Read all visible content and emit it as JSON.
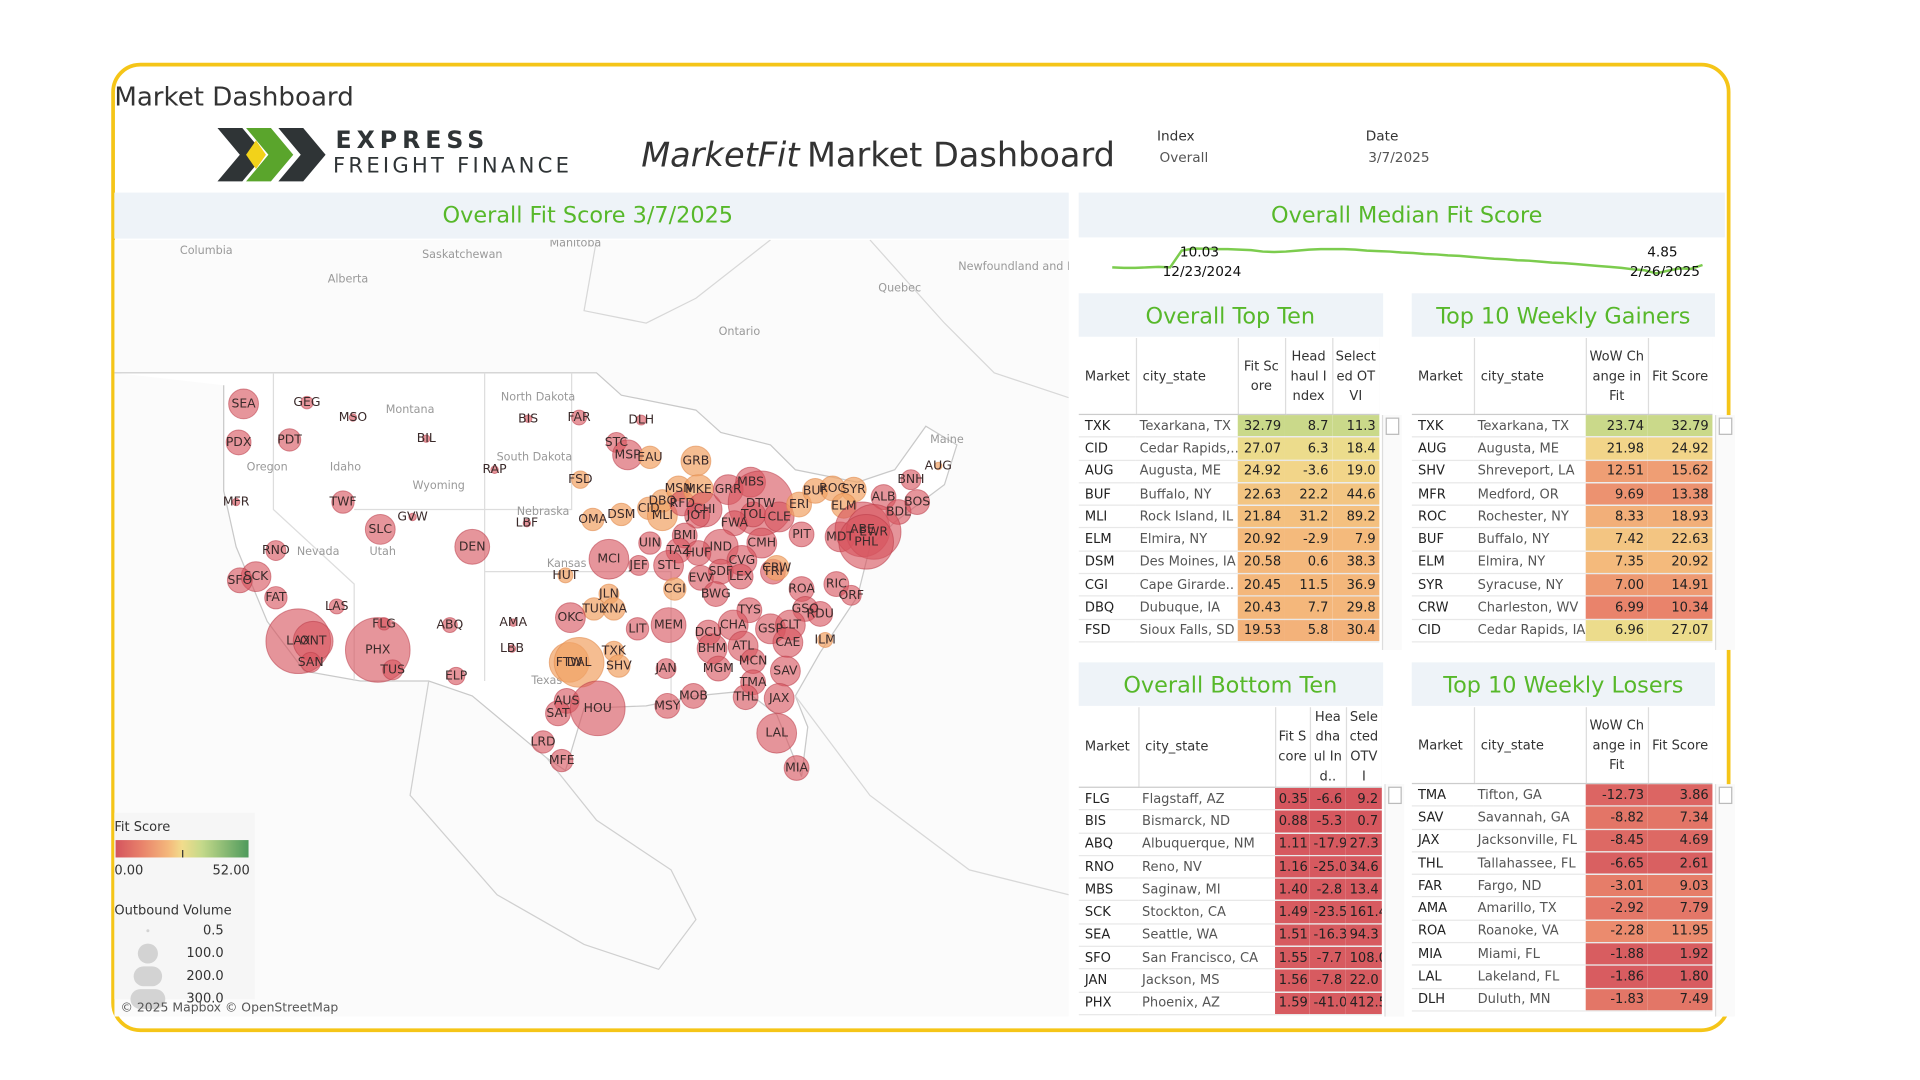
{
  "header": {
    "page_title": "Market Dashboard",
    "logo_top": "EXPRESS",
    "logo_bottom": "FREIGHT FINANCE",
    "title_brand": "MarketFit",
    "title_rest": "Market Dashboard",
    "filters": [
      {
        "label": "Index",
        "value": "Overall"
      },
      {
        "label": "Date",
        "value": "3/7/2025"
      }
    ]
  },
  "map": {
    "title": "Overall Fit Score 3/7/2025",
    "places": [
      "Columbia",
      "Saskatchewan",
      "Alberta",
      "Manitoba",
      "Quebec",
      "Ontario",
      "Newfoundland and Labrador",
      "Montana",
      "North Dakota",
      "South Dakota",
      "Wyoming",
      "Oregon",
      "Idaho",
      "Nevada",
      "Utah",
      "Nebraska",
      "Kansas",
      "Texas",
      "Maine"
    ],
    "markets": [
      "SEA",
      "GEG",
      "MSO",
      "PDX",
      "PDT",
      "BIL",
      "MFR",
      "TWF",
      "GVW",
      "SLC",
      "RNO",
      "DEN",
      "SCK",
      "SFO",
      "FAT",
      "LAS",
      "LAX",
      "ONT",
      "SAN",
      "PHX",
      "FLG",
      "TUS",
      "ABQ",
      "ELP",
      "AMA",
      "LBB",
      "BIS",
      "FAR",
      "DLH",
      "STC",
      "MSP",
      "EAU",
      "RAP",
      "FSD",
      "GRB",
      "OMA",
      "LBF",
      "DSM",
      "CID",
      "MLI",
      "DBQ",
      "MSN",
      "RFD",
      "MKE",
      "CHI",
      "JOT",
      "GRR",
      "MBS",
      "DTW",
      "TOL",
      "CLE",
      "FWA",
      "ERI",
      "BUF",
      "ROC",
      "SYR",
      "ELM",
      "ALB",
      "BNH",
      "AUG",
      "BOS",
      "BDL",
      "MDT",
      "ABE",
      "EWR",
      "PHL",
      "PIT",
      "CMH",
      "IND",
      "UIN",
      "BMI",
      "TAZ",
      "HUF",
      "MCI",
      "STL",
      "JEF",
      "CVG",
      "SDF",
      "LEX",
      "EVV",
      "TRI",
      "CRW",
      "HUT",
      "CGI",
      "ROA",
      "RIC",
      "ORF",
      "BWG",
      "TYS",
      "JLN",
      "TUL",
      "XNA",
      "OKC",
      "GSO",
      "RDU",
      "MEM",
      "LIT",
      "CHA",
      "DCU",
      "GSP",
      "CLT",
      "CAE",
      "ILM",
      "BHM",
      "ATL",
      "TXK",
      "SHV",
      "FTW",
      "DAL",
      "JAN",
      "MGM",
      "MCN",
      "SAV",
      "TMA",
      "THL",
      "JAX",
      "MOB",
      "MSY",
      "AUS",
      "SAT",
      "HOU",
      "LAL",
      "MIA",
      "LRD",
      "MFE"
    ],
    "attribution": "© 2025 Mapbox © OpenStreetMap",
    "color_legend": {
      "title": "Fit Score",
      "min": {
        "value": 0,
        "label": "0.00"
      },
      "max": {
        "value": 52,
        "label": "52.00"
      }
    },
    "size_legend": {
      "title": "Outbound Volume",
      "items": [
        0.5,
        {
          "value": 100,
          "label": "100.0"
        },
        {
          "value": 200,
          "label": "200.0"
        },
        {
          "value": 300,
          "label": "300.0"
        }
      ]
    }
  },
  "median": {
    "title": "Overall Median Fit Score",
    "values": [
      6.1,
      6.0,
      6.0,
      6.1,
      6.2,
      6.1,
      9.6,
      10.03,
      10.0,
      9.9,
      9.9,
      9.8,
      9.7,
      9.4,
      9.3,
      9.4,
      9.6,
      9.8,
      9.9,
      9.9,
      9.9,
      9.8,
      9.6,
      9.5,
      9.4,
      9.2,
      9.1,
      8.9,
      8.8,
      8.6,
      8.5,
      8.3,
      8.1,
      7.9,
      7.8,
      7.6,
      7.5,
      7.3,
      7.1,
      7.0,
      6.8,
      6.6,
      6.4,
      6.2,
      6.0,
      5.7,
      5.5,
      4.85,
      5.4,
      5.9,
      5.8,
      6.6
    ],
    "annotations": [
      {
        "value": 10.03,
        "label": "12/23/2024"
      },
      {
        "value": 4.85,
        "label": "2/26/2025"
      }
    ]
  },
  "tables": [
    {
      "title": "Overall Top Ten",
      "columns": [
        "Market",
        "city_state",
        "Fit Score",
        "Headhaul Index",
        "Selected OTVI"
      ],
      "rows": [
        [
          "TXK",
          "Texarkana, TX",
          "32.79",
          "8.7",
          "11.3"
        ],
        [
          "CID",
          "Cedar Rapids,..",
          "27.07",
          "6.3",
          "18.4"
        ],
        [
          "AUG",
          "Augusta, ME",
          "24.92",
          "-3.6",
          "19.0"
        ],
        [
          "BUF",
          "Buffalo, NY",
          "22.63",
          "22.2",
          "44.6"
        ],
        [
          "MLI",
          "Rock Island, IL",
          "21.84",
          "31.2",
          "89.2"
        ],
        [
          "ELM",
          "Elmira, NY",
          "20.92",
          "-2.9",
          "7.9"
        ],
        [
          "DSM",
          "Des Moines, IA",
          "20.58",
          "0.6",
          "38.3"
        ],
        [
          "CGI",
          "Cape Girarde..",
          "20.45",
          "11.5",
          "36.9"
        ],
        [
          "DBQ",
          "Dubuque, IA",
          "20.43",
          "7.7",
          "29.8"
        ],
        [
          "FSD",
          "Sioux Falls, SD",
          "19.53",
          "5.8",
          "30.4"
        ]
      ]
    },
    {
      "title": "Top 10 Weekly Gainers",
      "columns": [
        "Market",
        "city_state",
        "WoW Change in Fit",
        "Fit Score"
      ],
      "rows": [
        [
          "TXK",
          "Texarkana, TX",
          "23.74",
          "32.79"
        ],
        [
          "AUG",
          "Augusta, ME",
          "21.98",
          "24.92"
        ],
        [
          "SHV",
          "Shreveport, LA",
          "12.51",
          "15.62"
        ],
        [
          "MFR",
          "Medford, OR",
          "9.69",
          "13.38"
        ],
        [
          "ROC",
          "Rochester, NY",
          "8.33",
          "18.93"
        ],
        [
          "BUF",
          "Buffalo, NY",
          "7.42",
          "22.63"
        ],
        [
          "ELM",
          "Elmira, NY",
          "7.35",
          "20.92"
        ],
        [
          "SYR",
          "Syracuse, NY",
          "7.00",
          "14.91"
        ],
        [
          "CRW",
          "Charleston, WV",
          "6.99",
          "10.34"
        ],
        [
          "CID",
          "Cedar Rapids, IA",
          "6.96",
          "27.07"
        ]
      ]
    },
    {
      "title": "Overall Bottom Ten",
      "columns": [
        "Market",
        "city_state",
        "Fit Score",
        "Headhaul Ind..",
        "Selected OTVI"
      ],
      "rows": [
        [
          "FLG",
          "Flagstaff, AZ",
          "0.35",
          "-6.6",
          "9.2"
        ],
        [
          "BIS",
          "Bismarck, ND",
          "0.88",
          "-5.3",
          "0.7"
        ],
        [
          "ABQ",
          "Albuquerque, NM",
          "1.11",
          "-17.9",
          "27.3"
        ],
        [
          "RNO",
          "Reno, NV",
          "1.16",
          "-25.0",
          "34.6"
        ],
        [
          "MBS",
          "Saginaw, MI",
          "1.40",
          "-2.8",
          "13.4"
        ],
        [
          "SCK",
          "Stockton, CA",
          "1.49",
          "-23.5",
          "161.4"
        ],
        [
          "SEA",
          "Seattle, WA",
          "1.51",
          "-16.3",
          "94.3"
        ],
        [
          "SFO",
          "San Francisco, CA",
          "1.55",
          "-7.7",
          "108.0"
        ],
        [
          "JAN",
          "Jackson, MS",
          "1.56",
          "-7.8",
          "22.0"
        ],
        [
          "PHX",
          "Phoenix, AZ",
          "1.59",
          "-41.0",
          "412.5"
        ]
      ]
    },
    {
      "title": "Top 10 Weekly Losers",
      "columns": [
        "Market",
        "city_state",
        "WoW Change in Fit",
        "Fit Score"
      ],
      "rows": [
        [
          "TMA",
          "Tifton, GA",
          "-12.73",
          "3.86"
        ],
        [
          "SAV",
          "Savannah, GA",
          "-8.82",
          "7.34"
        ],
        [
          "JAX",
          "Jacksonville, FL",
          "-8.45",
          "4.69"
        ],
        [
          "THL",
          "Tallahassee, FL",
          "-6.65",
          "2.61"
        ],
        [
          "FAR",
          "Fargo, ND",
          "-3.01",
          "9.03"
        ],
        [
          "AMA",
          "Amarillo, TX",
          "-2.92",
          "7.79"
        ],
        [
          "ROA",
          "Roanoke, VA",
          "-2.28",
          "11.95"
        ],
        [
          "MIA",
          "Miami, FL",
          "-1.88",
          "1.92"
        ],
        [
          "LAL",
          "Lakeland, FL",
          "-1.86",
          "1.80"
        ],
        [
          "DLH",
          "Duluth, MN",
          "-1.83",
          "7.49"
        ]
      ]
    }
  ]
}
